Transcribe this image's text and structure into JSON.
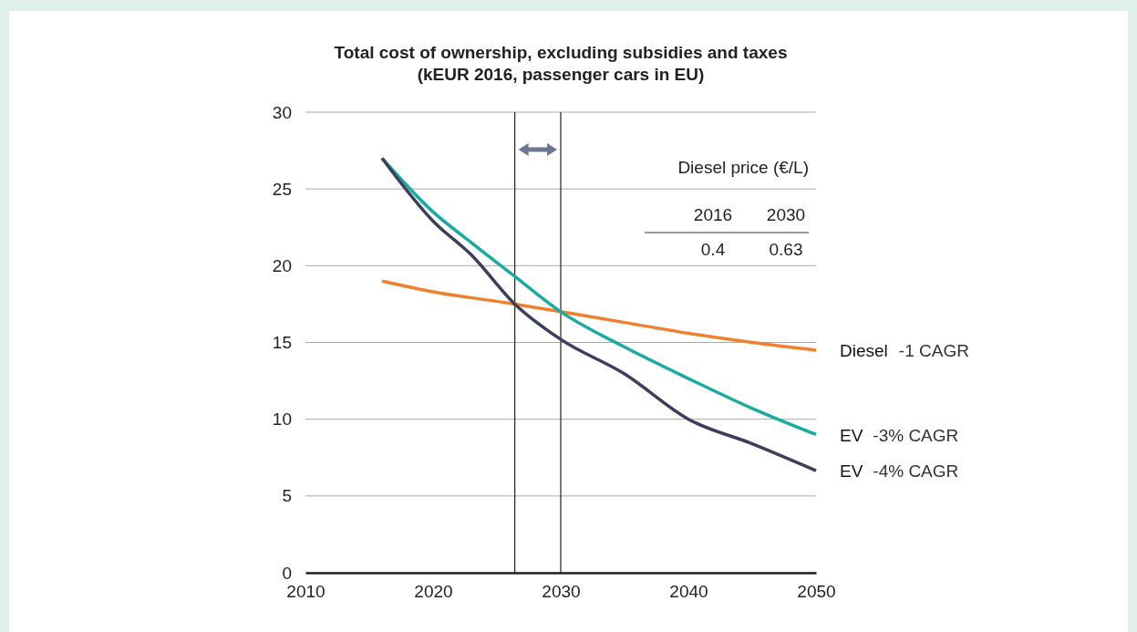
{
  "chart_data": {
    "type": "line",
    "title": "Total cost of ownership, excluding subsidies and taxes",
    "subtitle": "(kEUR 2016, passenger cars in EU)",
    "xlim": [
      2010,
      2050
    ],
    "xticks": [
      2010,
      2020,
      2030,
      2040,
      2050
    ],
    "ylim": [
      0,
      30
    ],
    "yticks": [
      0,
      5,
      10,
      15,
      20,
      25,
      30
    ],
    "grid": "y",
    "marker": "none",
    "line_style": "solid",
    "series": [
      {
        "name": "Diesel",
        "color": "#f07f2e",
        "x": [
          2016,
          2020,
          2026.4,
          2030,
          2035,
          2040,
          2045,
          2050
        ],
        "values": [
          19.0,
          18.3,
          17.5,
          17.0,
          16.3,
          15.6,
          15.0,
          14.5
        ]
      },
      {
        "name": "EV",
        "color": "#1aaba0",
        "x": [
          2016,
          2020,
          2023,
          2026.4,
          2030,
          2035,
          2040,
          2045,
          2050
        ],
        "values": [
          27.0,
          23.5,
          21.5,
          19.3,
          17.0,
          14.7,
          12.65,
          10.7,
          9.0
        ]
      },
      {
        "name": "EV",
        "color": "#3b3f5c",
        "x": [
          2016,
          2020,
          2023,
          2026.4,
          2030,
          2035,
          2040,
          2045,
          2050
        ],
        "values": [
          27.0,
          22.9,
          20.7,
          17.5,
          15.2,
          12.95,
          10.0,
          8.4,
          6.65
        ]
      }
    ],
    "ref_lines": [
      {
        "axis": "x",
        "value": 2026.4,
        "color": "#222222"
      },
      {
        "axis": "x",
        "value": 2030,
        "color": "#222222"
      }
    ],
    "annotations": [
      "-1 CAGR",
      "-3% CAGR",
      "-4% CAGR",
      "Diesel price (€/L)",
      "2016",
      "2030",
      "0.4",
      "0.63"
    ]
  }
}
